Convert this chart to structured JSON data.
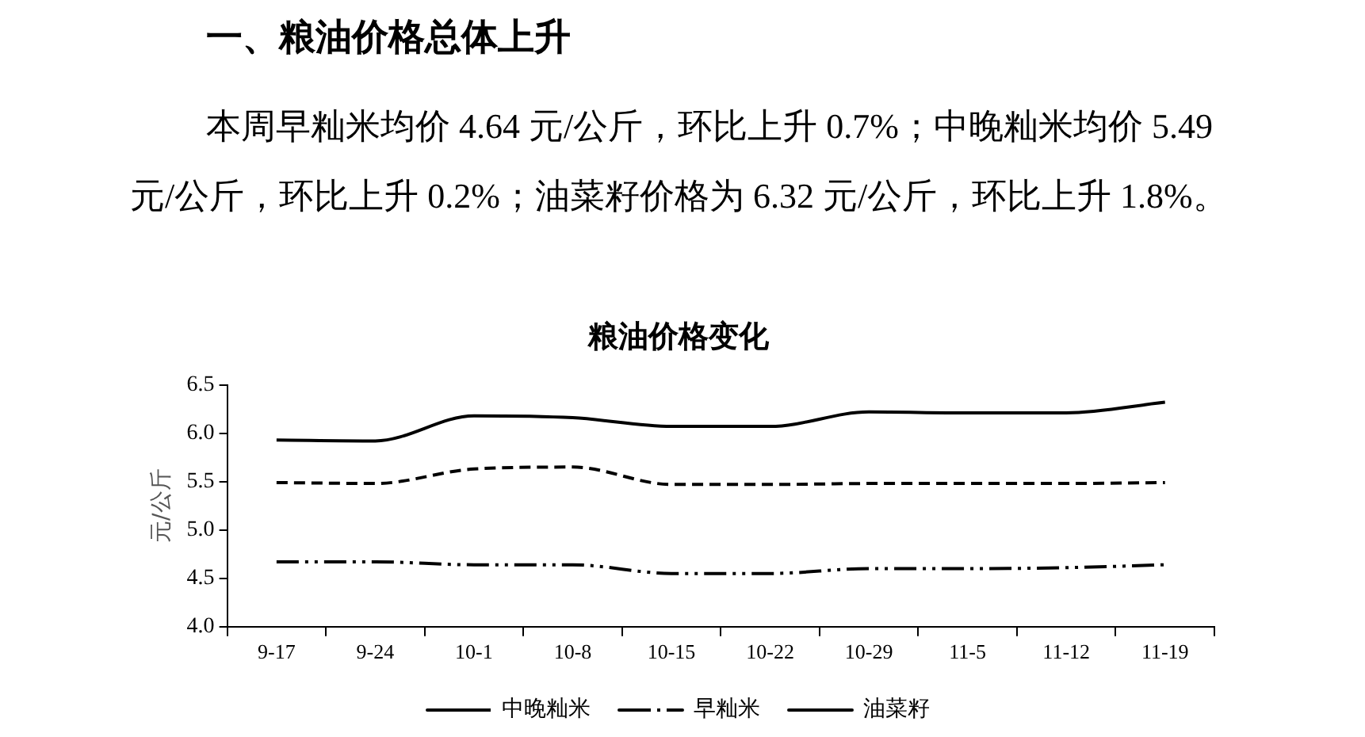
{
  "chart_data": {
    "type": "line",
    "title": "粮油价格变化",
    "ylabel": "元/公斤",
    "annotations": [
      "一、粮油价格总体上升",
      "本周早籼米均价 4.64 元/公斤，环比上升 0.7%；中晚籼米均价 5.49 元/公斤，环比上升 0.2%；油菜籽价格为 6.32 元/公斤，环比上升 1.8%。"
    ],
    "categories": [
      "9-17",
      "9-24",
      "10-1",
      "10-8",
      "10-15",
      "10-22",
      "10-29",
      "11-5",
      "11-12",
      "11-19"
    ],
    "series": [
      {
        "name": "中晚籼米",
        "color": "#000000",
        "line_style": "dashed",
        "values": [
          5.49,
          5.48,
          5.63,
          5.65,
          5.47,
          5.47,
          5.48,
          5.48,
          5.48,
          5.49
        ]
      },
      {
        "name": "早籼米",
        "color": "#000000",
        "line_style": "dotted",
        "values": [
          4.67,
          4.67,
          4.64,
          4.64,
          4.55,
          4.55,
          4.6,
          4.6,
          4.61,
          4.64
        ]
      },
      {
        "name": "油菜籽",
        "color": "#000000",
        "line_style": "solid",
        "values": [
          5.93,
          5.92,
          6.18,
          6.16,
          6.07,
          6.07,
          6.22,
          6.21,
          6.21,
          6.32
        ]
      }
    ],
    "ylim": [
      4,
      6.5
    ],
    "yticks": [
      {
        "value": 4,
        "label": "4.0"
      },
      4.5,
      {
        "value": 5,
        "label": "5.0"
      },
      5.5,
      {
        "value": 6,
        "label": "6.0"
      },
      6.5
    ],
    "grid": false,
    "legend": "bottom",
    "marker": "none"
  }
}
